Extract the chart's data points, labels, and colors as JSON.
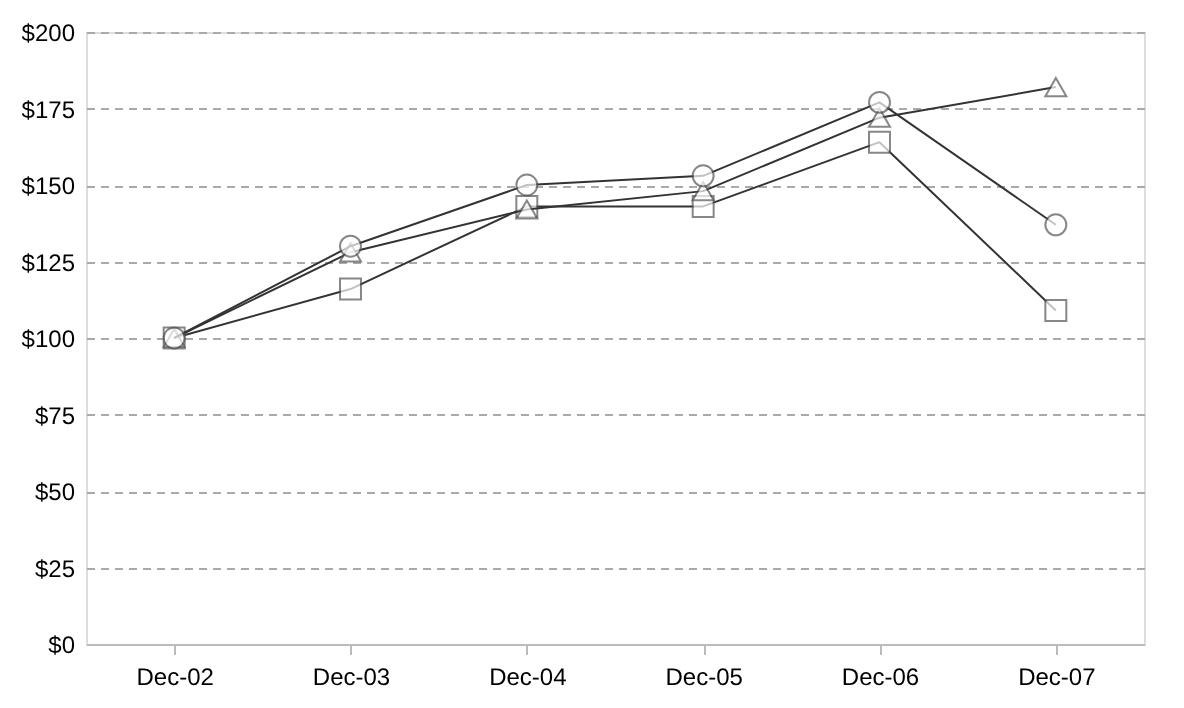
{
  "chart_data": {
    "type": "line",
    "categories": [
      "Dec-02",
      "Dec-03",
      "Dec-04",
      "Dec-05",
      "Dec-06",
      "Dec-07"
    ],
    "series": [
      {
        "color": "#333333",
        "marker": "square",
        "values": [
          100,
          116,
          143,
          143,
          164,
          109
        ]
      },
      {
        "color": "#333333",
        "marker": "triangle",
        "values": [
          100,
          128,
          142,
          148,
          172,
          182
        ]
      },
      {
        "color": "#333333",
        "marker": "circle",
        "values": [
          100,
          130,
          150,
          153,
          177,
          137
        ]
      }
    ],
    "ylim": [
      0,
      200
    ],
    "yticks": [
      {
        "value": 0,
        "label": "$0"
      },
      {
        "value": 25,
        "label": "$25"
      },
      {
        "value": 50,
        "label": "$50"
      },
      {
        "value": 75,
        "label": "$75"
      },
      {
        "value": 100,
        "label": "$100"
      },
      {
        "value": 125,
        "label": "$125"
      },
      {
        "value": 150,
        "label": "$150"
      },
      {
        "value": 175,
        "label": "$175"
      },
      {
        "value": 200,
        "label": "$200"
      }
    ],
    "grid": "y",
    "line_style": "solid"
  }
}
